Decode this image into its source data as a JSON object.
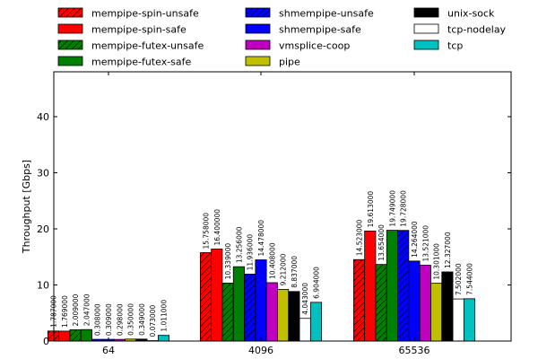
{
  "chart_data": {
    "type": "bar",
    "title": "",
    "xlabel": "",
    "ylabel": "Throughput [Gbps]",
    "ylim": [
      0,
      48
    ],
    "yticks": [
      0,
      10,
      20,
      30,
      40
    ],
    "grid": false,
    "legend_position": "top",
    "categories": [
      "64",
      "4096",
      "65536"
    ],
    "series": [
      {
        "name": "mempipe-spin-unsafe",
        "color": "#ff0000",
        "hatch": true,
        "values": [
          1.787,
          15.758,
          14.523
        ],
        "labels": [
          "1.787000",
          "15.758000",
          "14.523000"
        ]
      },
      {
        "name": "mempipe-spin-safe",
        "color": "#ff0000",
        "hatch": false,
        "values": [
          1.769,
          16.4,
          19.613
        ],
        "labels": [
          "1.769000",
          "16.400000",
          "19.613000"
        ]
      },
      {
        "name": "mempipe-futex-unsafe",
        "color": "#008000",
        "hatch": true,
        "values": [
          2.009,
          10.339,
          13.654
        ],
        "labels": [
          "2.009000",
          "10.339000",
          "13.654000"
        ]
      },
      {
        "name": "mempipe-futex-safe",
        "color": "#008000",
        "hatch": false,
        "values": [
          2.047,
          13.256,
          19.749
        ],
        "labels": [
          "2.047000",
          "13.256000",
          "19.749000"
        ]
      },
      {
        "name": "shmempipe-unsafe",
        "color": "#0000ff",
        "hatch": true,
        "values": [
          0.308,
          11.936,
          19.728
        ],
        "labels": [
          "0.308000",
          "11.936000",
          "19.728000"
        ]
      },
      {
        "name": "shmempipe-safe",
        "color": "#0000ff",
        "hatch": false,
        "values": [
          0.309,
          14.478,
          14.264
        ],
        "labels": [
          "0.309000",
          "14.478000",
          "14.264000"
        ]
      },
      {
        "name": "vmsplice-coop",
        "color": "#c000c0",
        "hatch": false,
        "values": [
          0.298,
          10.408,
          13.521
        ],
        "labels": [
          "0.298000",
          "10.408000",
          "13.521000"
        ]
      },
      {
        "name": "pipe",
        "color": "#c0c000",
        "hatch": false,
        "values": [
          0.35,
          9.212,
          10.301
        ],
        "labels": [
          "0.350000",
          "9.212000",
          "10.301000"
        ]
      },
      {
        "name": "unix-sock",
        "color": "#000000",
        "hatch": false,
        "values": [
          0.349,
          8.837,
          12.327
        ],
        "labels": [
          "0.349000",
          "8.837000",
          "12.327000"
        ]
      },
      {
        "name": "tcp-nodelay",
        "color": "#ffffff",
        "hatch": false,
        "values": [
          0.073,
          4.043,
          7.502
        ],
        "labels": [
          "0.073000",
          "4.043000",
          "7.502000"
        ]
      },
      {
        "name": "tcp",
        "color": "#00c0c0",
        "hatch": false,
        "values": [
          1.011,
          6.904,
          7.544
        ],
        "labels": [
          "1.011000",
          "6.904000",
          "7.544000"
        ]
      }
    ]
  }
}
